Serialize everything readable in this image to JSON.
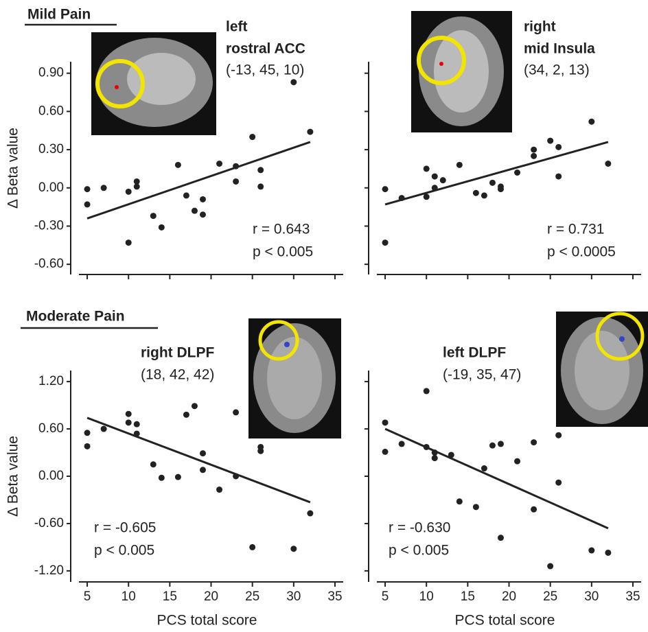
{
  "chart_data": [
    {
      "type": "scatter",
      "section_title": "Mild Pain",
      "region_label": [
        "left",
        "rostral ACC"
      ],
      "coordinates": "(-13, 45, 10)",
      "r_label": "r = 0.643",
      "p_label": "p < 0.005",
      "y_label": "Δ Beta value",
      "color": "#222222",
      "x": [
        5,
        5,
        7,
        10,
        10,
        11,
        11,
        13,
        14,
        16,
        17,
        18,
        19,
        19,
        21,
        23,
        23,
        25,
        26,
        26,
        30,
        32
      ],
      "values": [
        -0.01,
        -0.13,
        0.0,
        -0.03,
        -0.43,
        0.05,
        0.01,
        -0.22,
        -0.31,
        0.18,
        -0.06,
        -0.18,
        -0.09,
        -0.21,
        0.19,
        0.17,
        0.05,
        0.4,
        0.14,
        0.01,
        0.83,
        0.44
      ],
      "trend_line": {
        "x": [
          5,
          32
        ],
        "values": [
          -0.24,
          0.36
        ]
      },
      "xlim": [
        3,
        36
      ],
      "xticks": [
        5,
        10,
        15,
        20,
        25,
        30,
        35
      ],
      "show_xtick_labels": false,
      "ylim": [
        -0.68,
        0.99
      ],
      "yticks": [
        {
          "value": -0.6,
          "label": "-0.60"
        },
        {
          "value": -0.3,
          "label": "-0.30"
        },
        {
          "value": 0,
          "label": "0.00"
        },
        {
          "value": 0.3,
          "label": "0.30"
        },
        {
          "value": 0.6,
          "label": "0.60"
        },
        {
          "value": 0.9,
          "label": "0.90"
        }
      ]
    },
    {
      "type": "scatter",
      "region_label": [
        "right",
        "mid Insula"
      ],
      "coordinates": "(34, 2, 13)",
      "r_label": "r = 0.731",
      "p_label": "p < 0.0005",
      "color": "#222222",
      "x": [
        5,
        5,
        7,
        10,
        10,
        11,
        11,
        12,
        14,
        16,
        17,
        18,
        19,
        19,
        21,
        23,
        23,
        25,
        26,
        26,
        30,
        32
      ],
      "values": [
        -0.01,
        -0.43,
        -0.08,
        0.15,
        -0.07,
        0.09,
        0.0,
        0.06,
        0.18,
        -0.04,
        -0.06,
        0.04,
        0.01,
        -0.01,
        0.12,
        0.3,
        0.25,
        0.37,
        0.32,
        0.09,
        0.52,
        0.19
      ],
      "trend_line": {
        "x": [
          5,
          32
        ],
        "values": [
          -0.13,
          0.36
        ]
      },
      "xlim": [
        3,
        36
      ],
      "xticks": [
        5,
        10,
        15,
        20,
        25,
        30,
        35
      ],
      "show_xtick_labels": false,
      "ylim": [
        -0.68,
        0.99
      ],
      "yticks": [
        -0.6,
        -0.3,
        0,
        0.3,
        0.6,
        0.9
      ],
      "show_ytick_labels": false
    },
    {
      "type": "scatter",
      "section_title": "Moderate Pain",
      "region_label": [
        "right DLPF"
      ],
      "coordinates": "(18, 42, 42)",
      "r_label": "r = -0.605",
      "p_label": "p < 0.005",
      "y_label": "Δ Beta value",
      "x_label": "PCS total score",
      "color": "#222222",
      "x": [
        5,
        5,
        7,
        10,
        10,
        11,
        11,
        13,
        14,
        16,
        17,
        18,
        19,
        19,
        21,
        23,
        23,
        25,
        26,
        26,
        30,
        32
      ],
      "values": [
        0.55,
        0.38,
        0.6,
        0.79,
        0.68,
        0.66,
        0.54,
        0.15,
        -0.02,
        -0.01,
        0.78,
        0.89,
        0.29,
        0.08,
        -0.17,
        0.81,
        0.0,
        -0.9,
        0.37,
        0.32,
        -0.92,
        -0.47
      ],
      "trend_line": {
        "x": [
          5,
          32
        ],
        "values": [
          0.74,
          -0.33
        ]
      },
      "xlim": [
        3,
        36
      ],
      "xticks": [
        5,
        10,
        15,
        20,
        25,
        30,
        35
      ],
      "ylim": [
        -1.34,
        1.34
      ],
      "yticks": [
        {
          "value": -1.2,
          "label": "-1.20"
        },
        {
          "value": -0.6,
          "label": "-0.60"
        },
        {
          "value": 0,
          "label": "0.00"
        },
        {
          "value": 0.6,
          "label": "0.60"
        },
        {
          "value": 1.2,
          "label": "1.20"
        }
      ]
    },
    {
      "type": "scatter",
      "region_label": [
        "left DLPF"
      ],
      "coordinates": "(-19, 35, 47)",
      "r_label": "r = -0.630",
      "p_label": "p < 0.005",
      "x_label": "PCS total score",
      "color": "#222222",
      "x": [
        5,
        5,
        7,
        10,
        10,
        11,
        11,
        13,
        14,
        16,
        17,
        18,
        19,
        19,
        21,
        23,
        23,
        25,
        26,
        26,
        30,
        32
      ],
      "values": [
        0.68,
        0.31,
        0.41,
        1.08,
        0.37,
        0.3,
        0.23,
        0.27,
        -0.32,
        -0.39,
        0.1,
        0.39,
        0.41,
        -0.78,
        0.19,
        0.43,
        -0.42,
        -1.14,
        0.52,
        -0.08,
        -0.94,
        -0.97
      ],
      "trend_line": {
        "x": [
          5,
          32
        ],
        "values": [
          0.6,
          -0.66
        ]
      },
      "xlim": [
        3,
        36
      ],
      "xticks": [
        5,
        10,
        15,
        20,
        25,
        30,
        35
      ],
      "ylim": [
        -1.34,
        1.34
      ],
      "yticks": [
        -1.2,
        -0.6,
        0,
        0.6,
        1.2
      ],
      "show_ytick_labels": false
    }
  ]
}
